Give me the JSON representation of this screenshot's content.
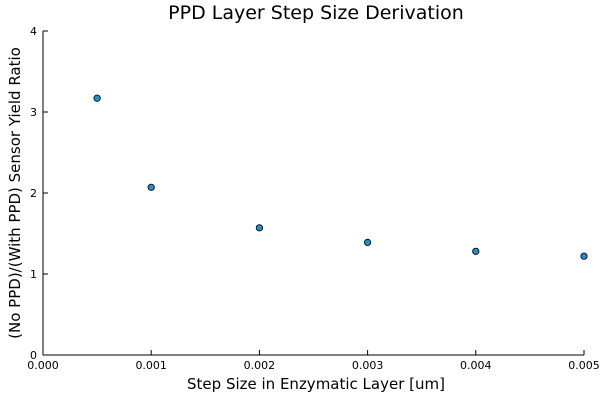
{
  "chart_data": {
    "type": "scatter",
    "title": "PPD Layer Step Size Derivation",
    "xlabel": "Step Size in Enzymatic Layer [um]",
    "ylabel": "(No PPD)/(With PPD) Sensor Yield Ratio",
    "xlim": [
      0,
      0.005
    ],
    "ylim": [
      0,
      4
    ],
    "xticks": [
      "0.000",
      "0.001",
      "0.002",
      "0.003",
      "0.004",
      "0.005"
    ],
    "xtick_values": [
      0,
      0.001,
      0.002,
      0.003,
      0.004,
      0.005
    ],
    "yticks": [
      "0",
      "1",
      "2",
      "3",
      "4"
    ],
    "ytick_values": [
      0,
      1,
      2,
      3,
      4
    ],
    "grid": false,
    "series": [
      {
        "color": "#1f8ecd",
        "x": [
          0.0005,
          0.001,
          0.002,
          0.003,
          0.004,
          0.005
        ],
        "y": [
          3.17,
          2.07,
          1.57,
          1.39,
          1.28,
          1.22
        ]
      }
    ]
  }
}
